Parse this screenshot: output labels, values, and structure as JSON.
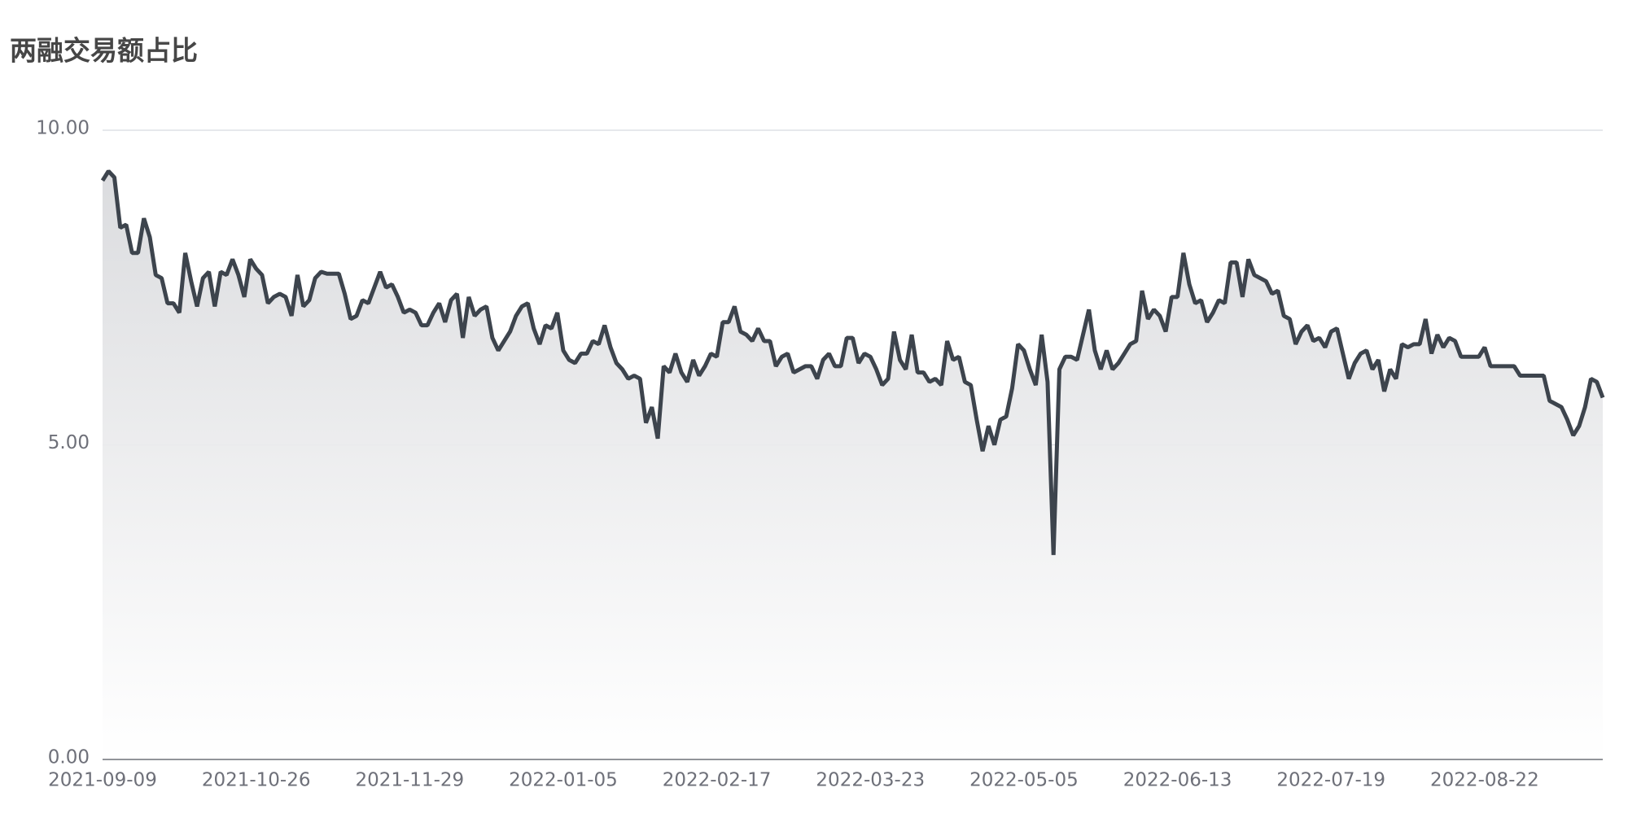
{
  "chart_data": {
    "type": "line",
    "title": "两融交易额占比",
    "categories": [
      "2021-09-09",
      null,
      null,
      null,
      null,
      null,
      null,
      null,
      null,
      null,
      null,
      null,
      null,
      null,
      null,
      null,
      null,
      null,
      null,
      null,
      null,
      null,
      null,
      null,
      null,
      null,
      "2021-10-26",
      null,
      null,
      null,
      null,
      null,
      null,
      null,
      null,
      null,
      null,
      null,
      null,
      null,
      null,
      null,
      null,
      null,
      null,
      null,
      null,
      null,
      null,
      null,
      null,
      null,
      "2021-11-29",
      null,
      null,
      null,
      null,
      null,
      null,
      null,
      null,
      null,
      null,
      null,
      null,
      null,
      null,
      null,
      null,
      null,
      null,
      null,
      null,
      null,
      null,
      null,
      null,
      null,
      "2022-01-05",
      null,
      null,
      null,
      null,
      null,
      null,
      null,
      null,
      null,
      null,
      null,
      null,
      null,
      null,
      null,
      null,
      null,
      null,
      null,
      null,
      null,
      null,
      null,
      null,
      null,
      "2022-02-17",
      null,
      null,
      null,
      null,
      null,
      null,
      null,
      null,
      null,
      null,
      null,
      null,
      null,
      null,
      null,
      null,
      null,
      null,
      null,
      null,
      null,
      null,
      null,
      null,
      null,
      "2022-03-23",
      null,
      null,
      null,
      null,
      null,
      null,
      null,
      null,
      null,
      null,
      null,
      null,
      null,
      null,
      null,
      null,
      null,
      null,
      null,
      null,
      null,
      null,
      null,
      null,
      null,
      "2022-05-05",
      null,
      null,
      null,
      null,
      null,
      null,
      null,
      null,
      null,
      null,
      null,
      null,
      null,
      null,
      null,
      null,
      null,
      null,
      null,
      null,
      null,
      null,
      null,
      null,
      null,
      "2022-06-13",
      null,
      null,
      null,
      null,
      null,
      null,
      null,
      null,
      null,
      null,
      null,
      null,
      null,
      null,
      null,
      null,
      null,
      null,
      null,
      null,
      null,
      null,
      null,
      null,
      null,
      "2022-07-19",
      null,
      null,
      null,
      null,
      null,
      null,
      null,
      null,
      null,
      null,
      null,
      null,
      null,
      null,
      null,
      null,
      null,
      null,
      null,
      null,
      null,
      null,
      null,
      null,
      null,
      "2022-08-22",
      null,
      null,
      null,
      null,
      null,
      null,
      null,
      null,
      null,
      null,
      null,
      null,
      null,
      null,
      null,
      null,
      null,
      null,
      null,
      null
    ],
    "series": [
      {
        "color": "#3d444d",
        "values": [
          9.2,
          9.35,
          9.25,
          8.45,
          8.5,
          8.05,
          8.05,
          8.6,
          8.3,
          7.7,
          7.65,
          7.25,
          7.25,
          7.1,
          8.05,
          7.6,
          7.2,
          7.65,
          7.75,
          7.2,
          7.75,
          7.7,
          7.95,
          7.7,
          7.35,
          7.95,
          7.8,
          7.7,
          7.25,
          7.35,
          7.4,
          7.35,
          7.05,
          7.7,
          7.2,
          7.3,
          7.65,
          7.75,
          7.72,
          7.72,
          7.72,
          7.4,
          7.0,
          7.05,
          7.3,
          7.25,
          7.5,
          7.75,
          7.5,
          7.55,
          7.35,
          7.1,
          7.15,
          7.1,
          6.9,
          6.9,
          7.1,
          7.25,
          6.95,
          7.3,
          7.4,
          6.7,
          7.35,
          7.05,
          7.15,
          7.2,
          6.7,
          6.5,
          6.65,
          6.8,
          7.05,
          7.2,
          7.25,
          6.85,
          6.6,
          6.9,
          6.85,
          7.1,
          6.5,
          6.35,
          6.3,
          6.45,
          6.45,
          6.65,
          6.6,
          6.9,
          6.55,
          6.3,
          6.2,
          6.05,
          6.1,
          6.05,
          5.35,
          5.6,
          5.1,
          6.25,
          6.15,
          6.45,
          6.15,
          6.0,
          6.35,
          6.1,
          6.25,
          6.45,
          6.4,
          6.95,
          6.95,
          7.2,
          6.8,
          6.75,
          6.65,
          6.85,
          6.65,
          6.65,
          6.25,
          6.4,
          6.45,
          6.15,
          6.2,
          6.25,
          6.25,
          6.05,
          6.35,
          6.45,
          6.25,
          6.25,
          6.7,
          6.7,
          6.3,
          6.45,
          6.4,
          6.2,
          5.95,
          6.05,
          6.8,
          6.35,
          6.2,
          6.75,
          6.15,
          6.15,
          6.0,
          6.05,
          5.95,
          6.65,
          6.35,
          6.4,
          6.0,
          5.95,
          5.4,
          4.9,
          5.3,
          5.0,
          5.4,
          5.45,
          5.9,
          6.6,
          6.5,
          6.2,
          5.95,
          6.75,
          6.0,
          3.25,
          6.2,
          6.4,
          6.4,
          6.35,
          6.75,
          7.15,
          6.5,
          6.2,
          6.5,
          6.2,
          6.3,
          6.45,
          6.6,
          6.65,
          7.45,
          7.0,
          7.15,
          7.05,
          6.8,
          7.35,
          7.35,
          8.05,
          7.55,
          7.25,
          7.3,
          6.95,
          7.1,
          7.3,
          7.25,
          7.9,
          7.9,
          7.35,
          7.95,
          7.7,
          7.65,
          7.6,
          7.4,
          7.45,
          7.05,
          7.0,
          6.6,
          6.8,
          6.9,
          6.65,
          6.7,
          6.55,
          6.8,
          6.85,
          6.45,
          6.05,
          6.3,
          6.45,
          6.5,
          6.2,
          6.35,
          5.85,
          6.2,
          6.05,
          6.6,
          6.55,
          6.6,
          6.6,
          7.0,
          6.45,
          6.75,
          6.55,
          6.7,
          6.65,
          6.4,
          6.4,
          6.4,
          6.4,
          6.55,
          6.25,
          6.25,
          6.25,
          6.25,
          6.25,
          6.1,
          6.1,
          6.1,
          6.1,
          6.1,
          5.7,
          5.65,
          5.6,
          5.4,
          5.15,
          5.3,
          5.6,
          6.05,
          6.0,
          5.75
        ]
      }
    ],
    "ylim": [
      0,
      10
    ],
    "yticks": [
      {
        "value": 0,
        "label": "0.00"
      },
      {
        "value": 5,
        "label": "5.00"
      },
      {
        "value": 10,
        "label": "10.00"
      }
    ],
    "grid": true,
    "area": true
  }
}
